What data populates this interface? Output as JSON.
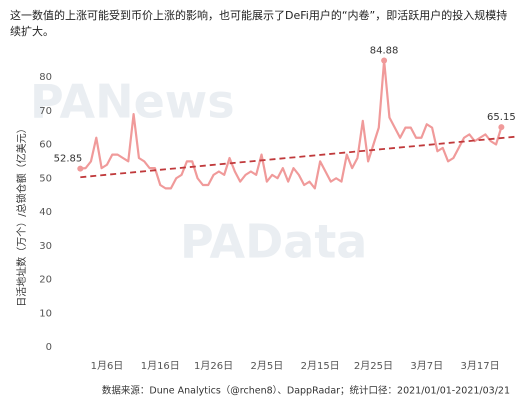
{
  "chart_data": {
    "type": "line",
    "subtitle": "这一数值的上涨可能受到币价上涨的影响，也可能展示了DeFi用户的“内卷”，即活跃用户的投入规模持续扩大。",
    "y_label": "日活地址数（万个）/总锁仓额（亿美元）",
    "source": "数据来源：Dune Analytics（@rchen8）、DappRadar；统计口径：2021/01/01-2021/03/21",
    "watermarks": [
      "PANews",
      "PAData"
    ],
    "categories": [
      null,
      null,
      null,
      null,
      null,
      "1月6日",
      null,
      null,
      null,
      null,
      null,
      null,
      null,
      null,
      null,
      "1月16日",
      null,
      null,
      null,
      null,
      null,
      null,
      null,
      null,
      null,
      "1月26日",
      null,
      null,
      null,
      null,
      null,
      null,
      null,
      null,
      null,
      "2月5日",
      null,
      null,
      null,
      null,
      null,
      null,
      null,
      null,
      null,
      "2月15日",
      null,
      null,
      null,
      null,
      null,
      null,
      null,
      null,
      null,
      "2月25日",
      null,
      null,
      null,
      null,
      null,
      null,
      null,
      null,
      null,
      "3月7日",
      null,
      null,
      null,
      null,
      null,
      null,
      null,
      null,
      null,
      "3月17日",
      null,
      null,
      null,
      null
    ],
    "series": [
      {
        "color": "#f09a9a",
        "values": [
          52.85,
          53,
          55,
          62,
          53,
          54,
          57,
          57,
          56,
          55,
          69,
          56,
          55,
          53,
          53,
          48,
          47,
          47,
          50,
          51,
          55,
          55,
          50,
          48,
          48,
          51,
          52,
          51,
          56,
          52,
          49,
          51,
          52,
          51,
          57,
          49,
          51,
          50,
          53,
          49,
          53,
          51,
          48,
          49,
          47,
          55,
          52,
          49,
          50,
          49,
          57,
          53,
          56,
          67,
          55,
          60,
          65,
          84.88,
          68,
          65,
          62,
          65,
          65,
          62,
          62,
          66,
          65,
          58,
          59,
          55,
          56,
          59,
          62,
          63,
          61,
          62,
          63,
          61,
          60,
          65.15
        ]
      }
    ],
    "labeled": [
      0,
      57,
      79
    ],
    "trend": {
      "color": "#c0393b",
      "values": [
        50.3,
        62.3
      ]
    },
    "ylim": [
      0,
      85
    ],
    "yticks": [
      0,
      10,
      20,
      30,
      40,
      50,
      60,
      70,
      80
    ],
    "grid": false
  }
}
